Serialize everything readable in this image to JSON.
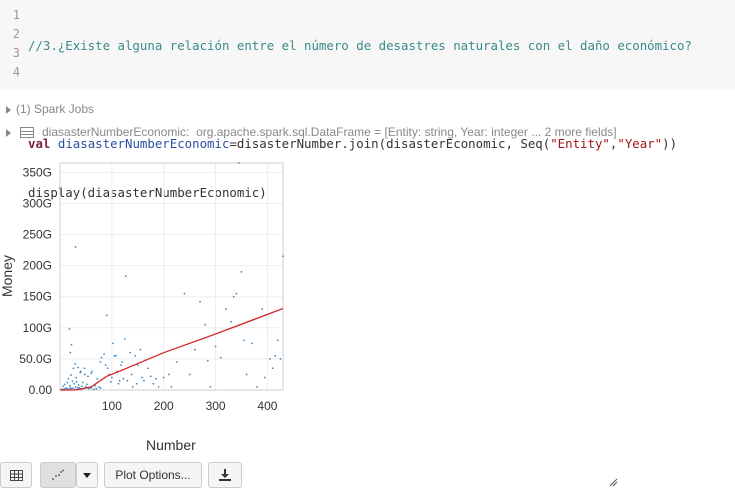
{
  "code_cell": {
    "line_numbers": [
      "1",
      "2",
      "3",
      "4"
    ],
    "comment": "//3.¿Existe alguna relación entre el número de desastres naturales con el daño económico?",
    "line3": {
      "kw": "val",
      "var": "diasasterNumberEconomic",
      "expr_a": "=disasterNumber.join(disasterEconomic, Seq(",
      "str1": "\"Entity\"",
      "comma": ",",
      "str2": "\"Year\"",
      "close": "))"
    },
    "line4": "display(diasasterNumberEconomic)"
  },
  "output": {
    "spark_jobs": "(1) Spark Jobs",
    "df_name": "diasasterNumberEconomic:",
    "df_type": "org.apache.spark.sql.DataFrame = [Entity: string, Year: integer ... 2 more fields]"
  },
  "chart_data": {
    "type": "scatter",
    "xlabel": "Number",
    "ylabel": "Money",
    "xlim": [
      0,
      430
    ],
    "ylim": [
      0,
      365
    ],
    "x_ticks": [
      100,
      200,
      300,
      400
    ],
    "y_ticks": [
      0,
      50,
      100,
      150,
      200,
      250,
      300,
      350
    ],
    "y_tick_labels": [
      "0.00",
      "50.0G",
      "100G",
      "150G",
      "200G",
      "250G",
      "300G",
      "350G"
    ],
    "point_color": "#1f77b4",
    "trend_color": "#d62728",
    "points": [
      [
        3,
        1
      ],
      [
        5,
        0.5
      ],
      [
        8,
        2
      ],
      [
        10,
        1
      ],
      [
        12,
        3
      ],
      [
        15,
        2
      ],
      [
        18,
        1
      ],
      [
        20,
        4
      ],
      [
        22,
        2
      ],
      [
        25,
        3
      ],
      [
        28,
        1
      ],
      [
        30,
        5
      ],
      [
        33,
        2
      ],
      [
        35,
        4
      ],
      [
        38,
        3
      ],
      [
        40,
        1
      ],
      [
        42,
        6
      ],
      [
        45,
        2
      ],
      [
        48,
        3
      ],
      [
        50,
        5
      ],
      [
        55,
        2
      ],
      [
        58,
        4
      ],
      [
        60,
        3
      ],
      [
        65,
        1
      ],
      [
        70,
        2
      ],
      [
        75,
        5
      ],
      [
        6,
        6
      ],
      [
        9,
        9
      ],
      [
        14,
        12
      ],
      [
        16,
        18
      ],
      [
        19,
        7
      ],
      [
        21,
        24
      ],
      [
        24,
        14
      ],
      [
        26,
        35
      ],
      [
        27,
        10
      ],
      [
        29,
        42
      ],
      [
        31,
        20
      ],
      [
        32,
        13
      ],
      [
        36,
        8
      ],
      [
        39,
        28
      ],
      [
        44,
        12
      ],
      [
        47,
        35
      ],
      [
        52,
        9
      ],
      [
        54,
        22
      ],
      [
        62,
        30
      ],
      [
        68,
        7
      ],
      [
        72,
        18
      ],
      [
        78,
        3
      ],
      [
        18,
        98
      ],
      [
        20,
        60
      ],
      [
        22,
        73
      ],
      [
        30,
        230
      ],
      [
        35,
        36
      ],
      [
        40,
        30
      ],
      [
        48,
        25
      ],
      [
        60,
        27
      ],
      [
        78,
        45
      ],
      [
        80,
        52
      ],
      [
        85,
        58
      ],
      [
        88,
        40
      ],
      [
        90,
        120
      ],
      [
        92,
        35
      ],
      [
        95,
        25
      ],
      [
        98,
        13
      ],
      [
        100,
        20
      ],
      [
        102,
        75
      ],
      [
        105,
        55
      ],
      [
        108,
        55
      ],
      [
        110,
        30
      ],
      [
        113,
        10
      ],
      [
        115,
        15
      ],
      [
        118,
        40
      ],
      [
        120,
        45
      ],
      [
        122,
        18
      ],
      [
        125,
        82
      ],
      [
        127,
        183
      ],
      [
        130,
        15
      ],
      [
        135,
        60
      ],
      [
        138,
        25
      ],
      [
        140,
        5
      ],
      [
        145,
        55
      ],
      [
        148,
        10
      ],
      [
        150,
        40
      ],
      [
        155,
        65
      ],
      [
        158,
        20
      ],
      [
        162,
        15
      ],
      [
        165,
        48
      ],
      [
        170,
        35
      ],
      [
        175,
        22
      ],
      [
        180,
        10
      ],
      [
        185,
        18
      ],
      [
        190,
        5
      ],
      [
        200,
        20
      ],
      [
        210,
        25
      ],
      [
        215,
        5
      ],
      [
        225,
        45
      ],
      [
        240,
        155
      ],
      [
        250,
        25
      ],
      [
        260,
        65
      ],
      [
        270,
        142
      ],
      [
        280,
        105
      ],
      [
        285,
        47
      ],
      [
        290,
        5
      ],
      [
        300,
        70
      ],
      [
        310,
        52
      ],
      [
        320,
        130
      ],
      [
        330,
        110
      ],
      [
        335,
        150
      ],
      [
        340,
        155
      ],
      [
        350,
        190
      ],
      [
        355,
        80
      ],
      [
        360,
        25
      ],
      [
        370,
        75
      ],
      [
        380,
        5
      ],
      [
        390,
        130
      ],
      [
        395,
        20
      ],
      [
        405,
        50
      ],
      [
        410,
        35
      ],
      [
        415,
        55
      ],
      [
        420,
        80
      ],
      [
        425,
        50
      ],
      [
        430,
        215
      ],
      [
        345,
        365
      ]
    ],
    "trend": [
      [
        0,
        0
      ],
      [
        30,
        0
      ],
      [
        60,
        5
      ],
      [
        90,
        22
      ],
      [
        120,
        32
      ],
      [
        200,
        60
      ],
      [
        300,
        90
      ],
      [
        430,
        131
      ]
    ]
  },
  "toolbar": {
    "plot_options_label": "Plot Options..."
  }
}
